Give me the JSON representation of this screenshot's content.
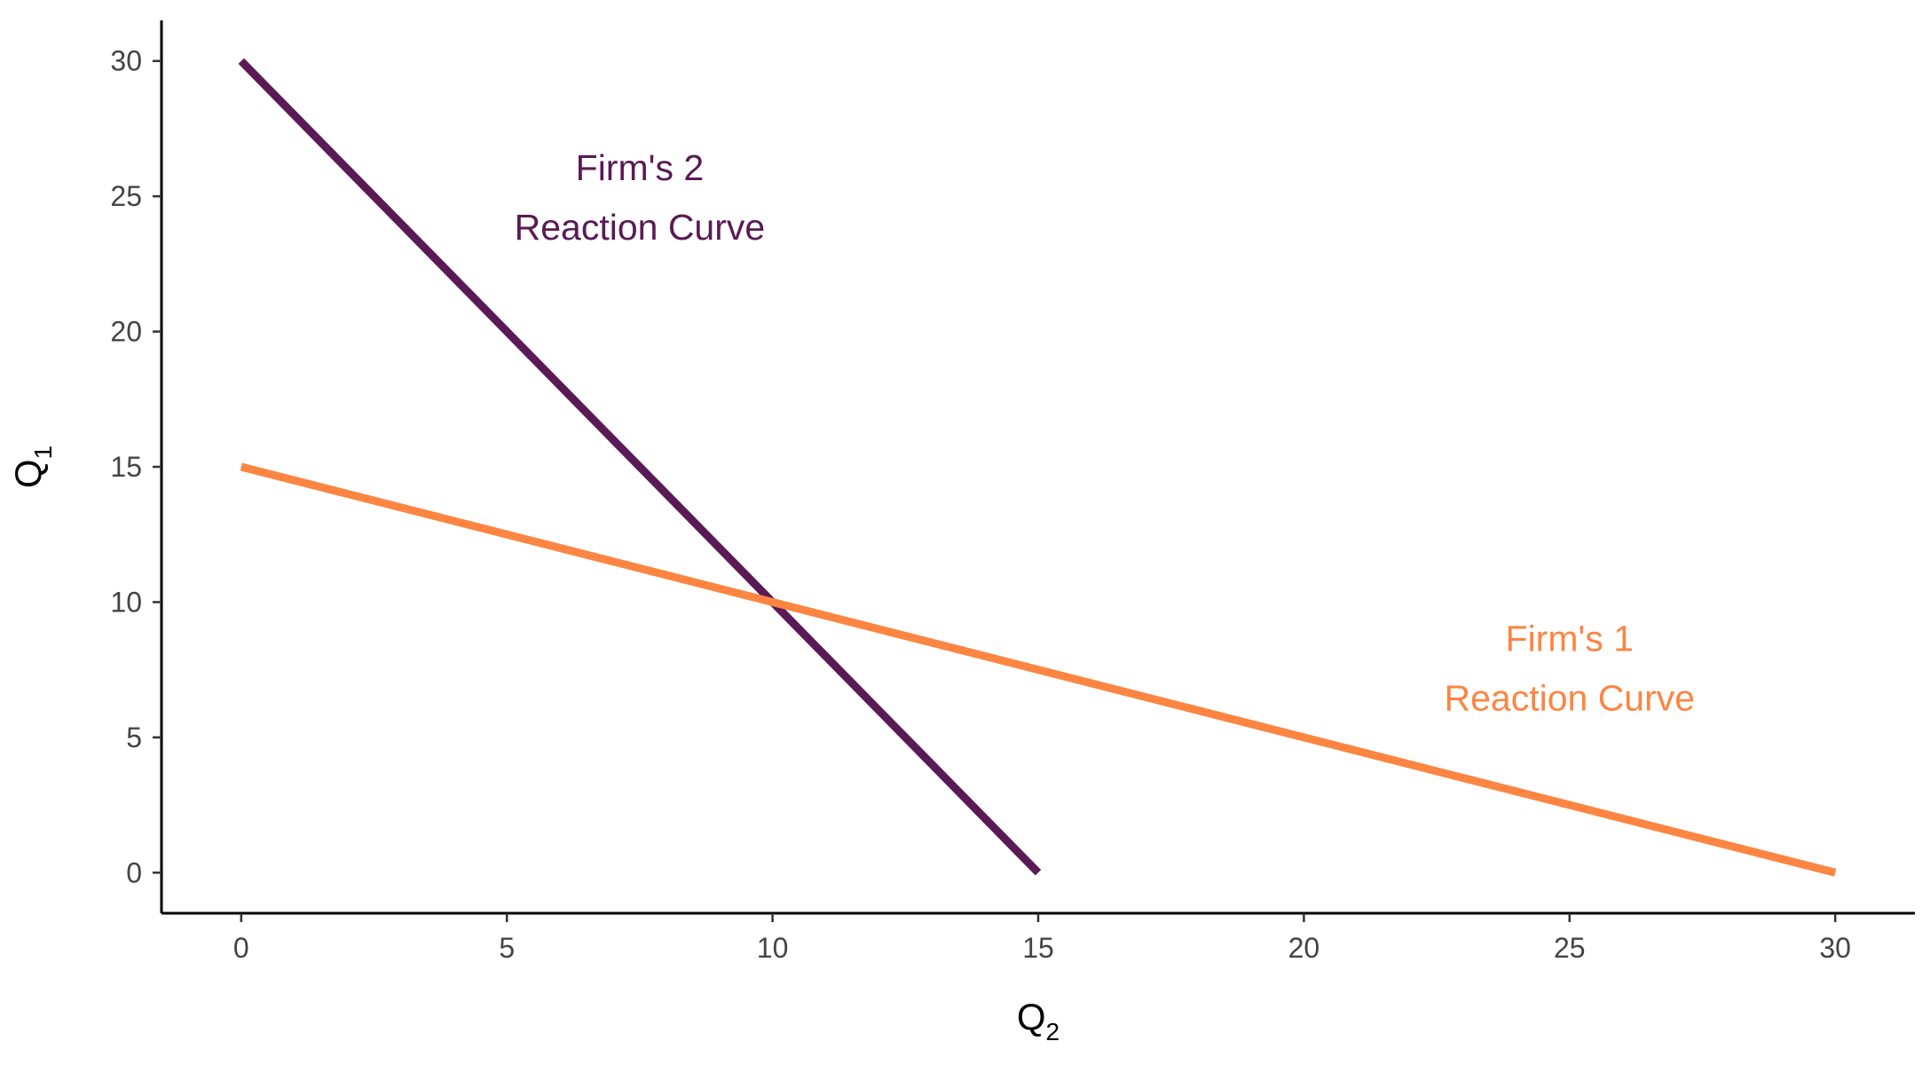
{
  "chart_data": {
    "type": "line",
    "xlabel": {
      "base": "Q",
      "sub": "2"
    },
    "ylabel": {
      "base": "Q",
      "sub": "1"
    },
    "xlim": [
      -1.5,
      31.5
    ],
    "ylim": [
      -1.5,
      31.5
    ],
    "x_ticks": [
      0,
      5,
      10,
      15,
      20,
      25,
      30
    ],
    "y_ticks": [
      0,
      5,
      10,
      15,
      20,
      25,
      30
    ],
    "grid": false,
    "series": [
      {
        "id": "firm2",
        "color": "#5a1a55",
        "points": [
          [
            0,
            30
          ],
          [
            15,
            0
          ]
        ]
      },
      {
        "id": "firm1",
        "color": "#fc8542",
        "points": [
          [
            0,
            15
          ],
          [
            30,
            0
          ]
        ]
      }
    ],
    "annotations": [
      {
        "lines": [
          "Firm's 2",
          "Reaction Curve"
        ],
        "x": 7.5,
        "y": 24.5,
        "color": "#5a1a55"
      },
      {
        "lines": [
          "Firm's 1",
          "Reaction Curve"
        ],
        "x": 25,
        "y": 7.1,
        "color": "#fc8542"
      }
    ]
  }
}
